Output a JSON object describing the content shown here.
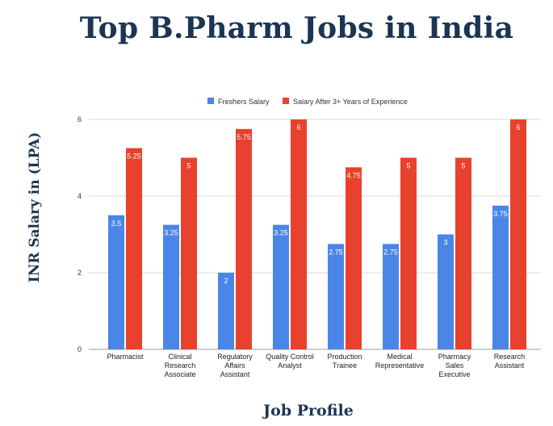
{
  "title": "Top B.Pharm Jobs in India",
  "colors": {
    "title": "#1b3553",
    "freshers": "#4a86e8",
    "experienced": "#e8412d",
    "grid": "#d9d9d9"
  },
  "chart_data": {
    "type": "bar",
    "title": "Top B.Pharm Jobs in India",
    "xlabel": "Job Profile",
    "ylabel": "INR Salary in (LPA)",
    "ylim": [
      0,
      6
    ],
    "yticks": [
      0,
      2,
      4,
      6
    ],
    "legend_position": "top",
    "grid": true,
    "categories": [
      [
        "Pharmacist"
      ],
      [
        "Clinical",
        "Research",
        "Associate"
      ],
      [
        "Regulatory",
        "Affairs",
        "Assistant"
      ],
      [
        "Quality Control",
        "Analyst"
      ],
      [
        "Production",
        "Trainee"
      ],
      [
        "Medical",
        "Representative"
      ],
      [
        "Pharmacy",
        "Sales",
        "Executive"
      ],
      [
        "Research",
        "Assistant"
      ]
    ],
    "series": [
      {
        "name": "Freshers Salary",
        "values": [
          3.5,
          3.25,
          2,
          3.25,
          2.75,
          2.75,
          3,
          3.75
        ]
      },
      {
        "name": "Salary After 3+ Years of Experience",
        "values": [
          5.25,
          5,
          5.75,
          6,
          4.75,
          5,
          5,
          6
        ]
      }
    ]
  }
}
